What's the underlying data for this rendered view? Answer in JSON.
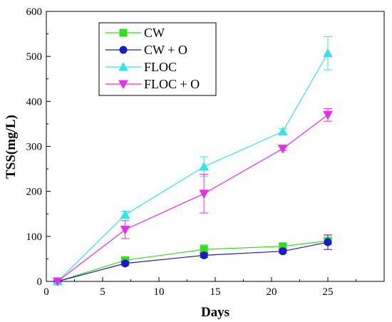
{
  "chart_data": {
    "type": "line",
    "title": "",
    "xlabel": "Days",
    "ylabel": "TSS(mg/L)",
    "xlim": [
      0,
      30
    ],
    "ylim": [
      0,
      600
    ],
    "xticks": [
      0,
      5,
      10,
      15,
      20,
      25
    ],
    "yticks": [
      0,
      100,
      200,
      300,
      400,
      500,
      600
    ],
    "grid": false,
    "legend_position": "top-left",
    "series": [
      {
        "name": "CW",
        "color": "#33dd1e",
        "marker": "square",
        "x": [
          1,
          7,
          14,
          21,
          25
        ],
        "y": [
          0,
          47,
          71,
          78,
          90
        ],
        "err": [
          0,
          5,
          10,
          6,
          6
        ]
      },
      {
        "name": "CW + O",
        "color": "#1a1acc",
        "marker": "circle",
        "x": [
          1,
          7,
          14,
          21,
          25
        ],
        "y": [
          0,
          40,
          58,
          67,
          87
        ],
        "err": [
          0,
          4,
          5,
          4,
          16
        ]
      },
      {
        "name": "FLOC",
        "color": "#33e6e6",
        "marker": "triangle-up",
        "x": [
          1,
          7,
          14,
          21,
          25
        ],
        "y": [
          0,
          148,
          255,
          333,
          507
        ],
        "err": [
          0,
          8,
          22,
          6,
          37
        ]
      },
      {
        "name": "FLOC + O",
        "color": "#ee2aee",
        "marker": "triangle-down",
        "x": [
          1,
          7,
          14,
          21,
          25
        ],
        "y": [
          0,
          115,
          195,
          295,
          370
        ],
        "err": [
          0,
          20,
          43,
          4,
          14
        ]
      }
    ]
  }
}
